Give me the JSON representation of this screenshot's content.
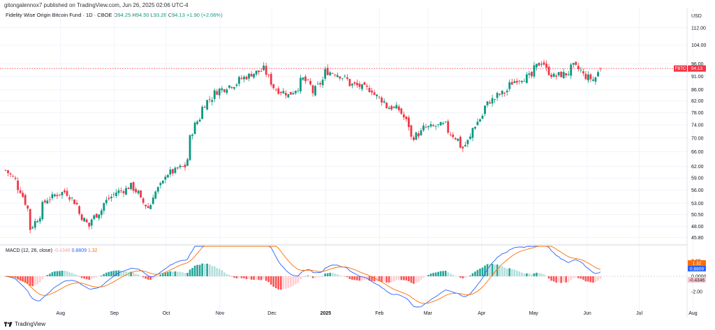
{
  "header": {
    "publisher": "gitongalennox7 published on TradingView.com, Jun 26, 2025 02:06 UTC-4",
    "symbol_title": "Fidelity Wise Origin Bitcoin Fund · 1D · CBOE",
    "open_label": "O",
    "open": "94.25",
    "high_label": "H",
    "high": "94.50",
    "low_label": "L",
    "low": "93.28",
    "close_label": "C",
    "close": "94.13",
    "change": "+1.90 (+2.06%)"
  },
  "price_axis": {
    "unit": "USD",
    "ticks": [
      "112.00",
      "104.00",
      "96.00",
      "91.00",
      "86.00",
      "82.00",
      "78.00",
      "74.00",
      "70.00",
      "66.00",
      "62.00",
      "59.00",
      "56.00",
      "53.00",
      "50.50",
      "48.00",
      "45.80"
    ],
    "last_price_label": "FBTC",
    "last_price": "94.13"
  },
  "macd": {
    "title": "MACD (12, 26, close)",
    "hist_value": "-0.4346",
    "macd_value": "0.8809",
    "signal_value": "1.32",
    "axis_ticks": [
      "2.00",
      "0.0000",
      "-2.00"
    ]
  },
  "time_axis": [
    "Aug",
    "Sep",
    "Oct",
    "Nov",
    "Dec",
    "2025",
    "Feb",
    "Mar",
    "Apr",
    "May",
    "Jun",
    "Jul",
    "Aug"
  ],
  "footer": {
    "brand": "TradingView"
  },
  "colors": {
    "up": "#089981",
    "down": "#f23645",
    "macd": "#2962ff",
    "signal": "#ff6d00",
    "price_line": "#f23645"
  },
  "chart_data": {
    "type": "candlestick",
    "title": "Fidelity Wise Origin Bitcoin Fund · 1D · CBOE",
    "ylabel": "USD",
    "scale": "log",
    "ylim": [
      44.5,
      116
    ],
    "anchors": [
      [
        "2024-07-22",
        61
      ],
      [
        "2024-07-30",
        56
      ],
      [
        "2024-08-05",
        47.5
      ],
      [
        "2024-08-14",
        54
      ],
      [
        "2024-08-25",
        56
      ],
      [
        "2024-09-06",
        48
      ],
      [
        "2024-09-20",
        55
      ],
      [
        "2024-10-01",
        57
      ],
      [
        "2024-10-10",
        52
      ],
      [
        "2024-10-21",
        60
      ],
      [
        "2024-10-31",
        62
      ],
      [
        "2024-11-06",
        74
      ],
      [
        "2024-11-13",
        82
      ],
      [
        "2024-11-20",
        86
      ],
      [
        "2024-11-28",
        88
      ],
      [
        "2024-12-05",
        91
      ],
      [
        "2024-12-16",
        94
      ],
      [
        "2024-12-20",
        87
      ],
      [
        "2024-12-30",
        84
      ],
      [
        "2025-01-07",
        90
      ],
      [
        "2025-01-13",
        85
      ],
      [
        "2025-01-20",
        93
      ],
      [
        "2025-01-27",
        92
      ],
      [
        "2025-02-03",
        88
      ],
      [
        "2025-02-14",
        86
      ],
      [
        "2025-02-24",
        80
      ],
      [
        "2025-03-03",
        79
      ],
      [
        "2025-03-10",
        70
      ],
      [
        "2025-03-17",
        73
      ],
      [
        "2025-03-28",
        74
      ],
      [
        "2025-04-08",
        67
      ],
      [
        "2025-04-15",
        74
      ],
      [
        "2025-04-23",
        82
      ],
      [
        "2025-05-01",
        85
      ],
      [
        "2025-05-08",
        90
      ],
      [
        "2025-05-16",
        91
      ],
      [
        "2025-05-22",
        97
      ],
      [
        "2025-05-29",
        91
      ],
      [
        "2025-06-05",
        92
      ],
      [
        "2025-06-10",
        95
      ],
      [
        "2025-06-17",
        91
      ],
      [
        "2025-06-22",
        89
      ],
      [
        "2025-06-25",
        94.13
      ]
    ],
    "last_bar": {
      "open": 94.25,
      "high": 94.5,
      "low": 93.28,
      "close": 94.13,
      "change": 1.9,
      "change_pct": 2.06
    },
    "macd_series": {
      "fast": 12,
      "slow": 26,
      "source": "close",
      "last_histogram": -0.4346,
      "last_macd": 0.8809,
      "last_signal": 1.32
    }
  }
}
